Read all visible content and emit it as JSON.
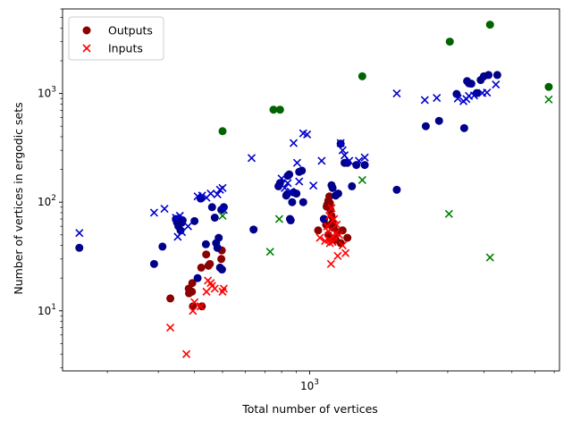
{
  "chart_data": {
    "type": "scatter",
    "title": "",
    "xlabel": "Total number of vertices",
    "ylabel": "Number of vertices in ergodic sets",
    "xscale": "log",
    "yscale": "log",
    "xlim": [
      140,
      7300
    ],
    "ylim": [
      2.8,
      6000
    ],
    "x_ticks": [
      {
        "value": 1000,
        "base": "10",
        "exp": "3"
      }
    ],
    "y_ticks": [
      {
        "value": 10,
        "base": "10",
        "exp": "1"
      },
      {
        "value": 100,
        "base": "10",
        "exp": "2"
      },
      {
        "value": 1000,
        "base": "10",
        "exp": "3"
      }
    ],
    "grid": false,
    "legend": {
      "position": "top-left",
      "entries": [
        "Outputs",
        "Inputs"
      ]
    },
    "series": [
      {
        "name": "Outputs",
        "marker": "circle",
        "color": "#8b0000",
        "points": [
          [
            330,
            13
          ],
          [
            382,
            16
          ],
          [
            383,
            14.5
          ],
          [
            393,
            18
          ],
          [
            395,
            11
          ],
          [
            424,
            11
          ],
          [
            422,
            25
          ],
          [
            439,
            33
          ],
          [
            452,
            27
          ],
          [
            447,
            26
          ],
          [
            497,
            36
          ],
          [
            495,
            30
          ],
          [
            392,
            15
          ],
          [
            1070,
            55
          ],
          [
            1120,
            70
          ],
          [
            1145,
            91
          ],
          [
            1150,
            95
          ],
          [
            1160,
            103
          ],
          [
            1170,
            113
          ],
          [
            1175,
            98
          ],
          [
            1180,
            85
          ],
          [
            1190,
            75
          ],
          [
            1200,
            65
          ],
          [
            1210,
            58
          ],
          [
            1250,
            53
          ],
          [
            1300,
            55
          ],
          [
            1350,
            47
          ],
          [
            1160,
            50
          ],
          [
            1180,
            47
          ],
          [
            1200,
            60
          ],
          [
            1230,
            45
          ],
          [
            1280,
            42
          ],
          [
            1140,
            62
          ]
        ]
      },
      {
        "name": "Outputs",
        "marker": "circle",
        "color": "#00008b",
        "points": [
          [
            160,
            38
          ],
          [
            290,
            27
          ],
          [
            310,
            39
          ],
          [
            345,
            70
          ],
          [
            348,
            65
          ],
          [
            352,
            60
          ],
          [
            355,
            70
          ],
          [
            358,
            55
          ],
          [
            362,
            65
          ],
          [
            364,
            68
          ],
          [
            400,
            67
          ],
          [
            410,
            20
          ],
          [
            420,
            108
          ],
          [
            438,
            41
          ],
          [
            460,
            90
          ],
          [
            470,
            72
          ],
          [
            475,
            42
          ],
          [
            480,
            38
          ],
          [
            485,
            47
          ],
          [
            490,
            25
          ],
          [
            495,
            85
          ],
          [
            498,
            24
          ],
          [
            505,
            90
          ],
          [
            640,
            56
          ],
          [
            780,
            140
          ],
          [
            790,
            150
          ],
          [
            830,
            115
          ],
          [
            835,
            118
          ],
          [
            840,
            175
          ],
          [
            850,
            180
          ],
          [
            855,
            70
          ],
          [
            860,
            68
          ],
          [
            870,
            100
          ],
          [
            880,
            123
          ],
          [
            900,
            120
          ],
          [
            920,
            190
          ],
          [
            940,
            195
          ],
          [
            950,
            100
          ],
          [
            1120,
            70
          ],
          [
            1190,
            143
          ],
          [
            1200,
            135
          ],
          [
            1230,
            115
          ],
          [
            1255,
            120
          ],
          [
            1280,
            345
          ],
          [
            1320,
            230
          ],
          [
            1350,
            230
          ],
          [
            1400,
            140
          ],
          [
            1450,
            220
          ],
          [
            1550,
            220
          ],
          [
            2000,
            130
          ],
          [
            2520,
            500
          ],
          [
            2800,
            560
          ],
          [
            3220,
            990
          ],
          [
            3420,
            480
          ],
          [
            3500,
            1300
          ],
          [
            3550,
            1240
          ],
          [
            3620,
            1230
          ],
          [
            3900,
            1330
          ],
          [
            4000,
            1440
          ],
          [
            4150,
            1480
          ],
          [
            4450,
            1480
          ],
          [
            3780,
            1010
          ]
        ]
      },
      {
        "name": "Outputs",
        "marker": "circle",
        "color": "#006400",
        "points": [
          [
            500,
            450
          ],
          [
            750,
            710
          ],
          [
            790,
            710
          ],
          [
            1520,
            1440
          ],
          [
            3050,
            3000
          ],
          [
            4200,
            4300
          ],
          [
            6700,
            1150
          ]
        ]
      },
      {
        "name": "Inputs",
        "marker": "cross",
        "color": "#ff0000",
        "points": [
          [
            330,
            7
          ],
          [
            375,
            4
          ],
          [
            395,
            10
          ],
          [
            400,
            12
          ],
          [
            420,
            11
          ],
          [
            440,
            15
          ],
          [
            445,
            19
          ],
          [
            455,
            18
          ],
          [
            470,
            16
          ],
          [
            500,
            15
          ],
          [
            505,
            16
          ],
          [
            460,
            17
          ],
          [
            1085,
            47
          ],
          [
            1130,
            44
          ],
          [
            1160,
            54
          ],
          [
            1165,
            45
          ],
          [
            1175,
            42
          ],
          [
            1185,
            27
          ],
          [
            1200,
            43
          ],
          [
            1210,
            48
          ],
          [
            1230,
            52
          ],
          [
            1250,
            32
          ],
          [
            1300,
            40
          ],
          [
            1330,
            34
          ],
          [
            1150,
            60
          ],
          [
            1170,
            75
          ],
          [
            1190,
            88
          ],
          [
            1215,
            70
          ],
          [
            1240,
            62
          ],
          [
            1265,
            50
          ]
        ]
      },
      {
        "name": "Inputs",
        "marker": "cross",
        "color": "#0000cd",
        "points": [
          [
            160,
            52
          ],
          [
            290,
            80
          ],
          [
            315,
            87
          ],
          [
            345,
            72
          ],
          [
            350,
            48
          ],
          [
            356,
            75
          ],
          [
            362,
            53
          ],
          [
            380,
            60
          ],
          [
            410,
            113
          ],
          [
            425,
            115
          ],
          [
            440,
            110
          ],
          [
            455,
            120
          ],
          [
            480,
            118
          ],
          [
            490,
            130
          ],
          [
            500,
            135
          ],
          [
            505,
            85
          ],
          [
            630,
            255
          ],
          [
            800,
            165
          ],
          [
            820,
            135
          ],
          [
            840,
            150
          ],
          [
            860,
            125
          ],
          [
            880,
            350
          ],
          [
            905,
            230
          ],
          [
            920,
            155
          ],
          [
            950,
            430
          ],
          [
            980,
            420
          ],
          [
            1030,
            142
          ],
          [
            1100,
            240
          ],
          [
            1280,
            350
          ],
          [
            1300,
            300
          ],
          [
            1320,
            270
          ],
          [
            1370,
            240
          ],
          [
            1480,
            240
          ],
          [
            1550,
            258
          ],
          [
            2000,
            1000
          ],
          [
            2500,
            870
          ],
          [
            2750,
            910
          ],
          [
            3250,
            900
          ],
          [
            3400,
            850
          ],
          [
            3480,
            890
          ],
          [
            3550,
            950
          ],
          [
            3700,
            960
          ],
          [
            3950,
            1010
          ],
          [
            4100,
            1020
          ],
          [
            4400,
            1210
          ]
        ]
      },
      {
        "name": "Inputs",
        "marker": "cross",
        "color": "#008000",
        "points": [
          [
            500,
            75
          ],
          [
            730,
            35
          ],
          [
            785,
            70
          ],
          [
            1520,
            160
          ],
          [
            3030,
            78
          ],
          [
            4200,
            31
          ],
          [
            6700,
            880
          ]
        ]
      }
    ]
  }
}
